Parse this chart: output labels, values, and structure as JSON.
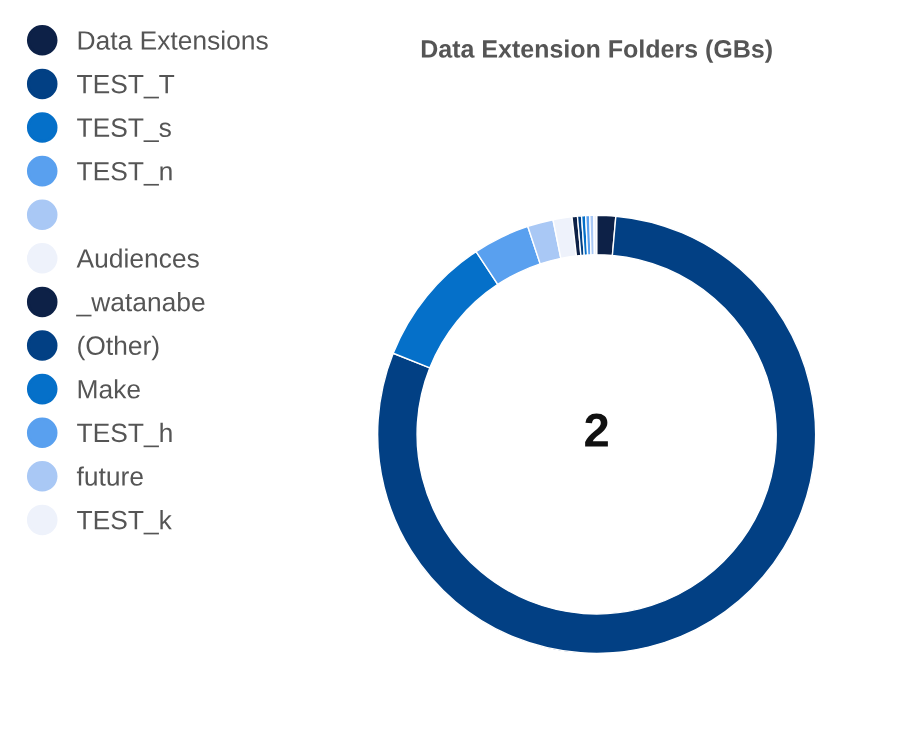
{
  "chart_data": {
    "type": "donut",
    "title": "Data Extension Folders (GBs)",
    "categories": [
      "Data Extensions",
      "TEST_T",
      "TEST_s",
      "TEST_n",
      null,
      "Audiences",
      "_watanabe",
      "(Other)",
      "Make",
      "TEST_h",
      "future",
      "TEST_k"
    ],
    "values": [
      1.4,
      79.8,
      9.7,
      4.2,
      1.9,
      1.4,
      0.4,
      0.3,
      0.3,
      0.3,
      0.3,
      0.2
    ],
    "colors": [
      "#0d2147",
      "#024084",
      "#0570c9",
      "#59a0ef",
      "#a9c8f5",
      "#eef2fb",
      "#0d2147",
      "#024084",
      "#0570c9",
      "#59a0ef",
      "#a9c8f5",
      "#eef2fb"
    ],
    "annotations": [
      "2"
    ],
    "legend": "left"
  }
}
